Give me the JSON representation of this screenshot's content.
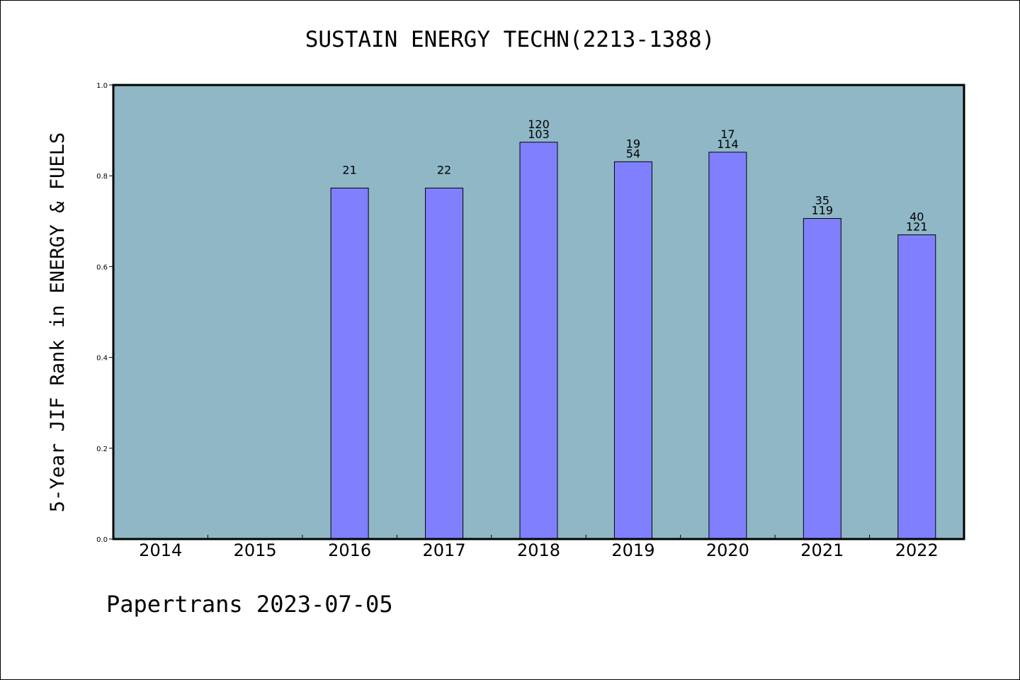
{
  "chart_data": {
    "type": "bar",
    "title": "SUSTAIN ENERGY TECHN(2213-1388)",
    "ylabel": "5-Year JIF Rank in ENERGY & FUELS",
    "xlabel": "",
    "ylim": [
      0,
      1.0
    ],
    "yticks": [
      "0.0",
      "0.2",
      "0.4",
      "0.6",
      "0.8",
      "1.0"
    ],
    "categories": [
      "2014",
      "2015",
      "2016",
      "2017",
      "2018",
      "2019",
      "2020",
      "2021",
      "2022"
    ],
    "values": [
      null,
      null,
      0.773,
      0.773,
      0.874,
      0.831,
      0.852,
      0.706,
      0.67
    ],
    "labels_top": [
      "",
      "",
      "",
      "",
      "120",
      "19",
      "17",
      "35",
      "40"
    ],
    "labels_bottom": [
      "",
      "",
      "21",
      "22",
      "103",
      "54",
      "114",
      "119",
      "121"
    ],
    "grid": false,
    "legend": "none",
    "colors": {
      "plot_background": "#8fb7c6",
      "bar_fill": "#8080ff",
      "bar_stroke": "#000000"
    }
  },
  "footer": "Papertrans 2023-07-05"
}
